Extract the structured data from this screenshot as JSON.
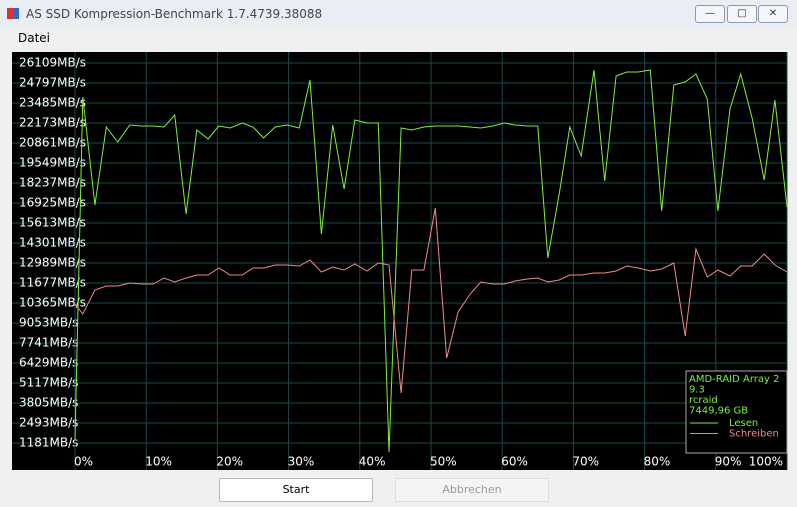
{
  "window": {
    "title": "AS SSD Kompression-Benchmark 1.7.4739.38088"
  },
  "menu": [
    "Datei"
  ],
  "chart_data": {
    "type": "line",
    "info": [
      "AMD-RAID Array 2",
      "9.3",
      "rcraid",
      "7449,96 GB"
    ],
    "x": [
      0,
      1.1,
      2.8,
      4.4,
      6.0,
      7.7,
      9.3,
      11.0,
      12.5,
      14.0,
      15.6,
      17.1,
      18.7,
      20.2,
      21.8,
      23.5,
      25.0,
      26.5,
      28.1,
      29.8,
      31.5,
      33.0,
      34.6,
      36.2,
      37.8,
      39.3,
      41.0,
      42.6,
      44.1,
      45.8,
      47.3,
      49.0,
      50.6,
      52.2,
      53.8,
      55.5,
      57.0,
      58.7,
      60.3,
      61.8,
      63.5,
      65.0,
      66.4,
      68.0,
      69.5,
      71.1,
      72.9,
      74.4,
      76.0,
      77.5,
      79.1,
      80.8,
      82.4,
      84.1,
      85.7,
      87.2,
      88.8,
      90.3,
      92.0,
      93.5,
      95.1,
      96.8,
      98.3,
      100
    ],
    "series": [
      {
        "name": "Lesen",
        "color": "#7cf03c",
        "values": [
          1378,
          23879,
          16794,
          21911,
          20927,
          22042,
          21976,
          21976,
          21911,
          22698,
          16203,
          21714,
          21124,
          21976,
          21845,
          22173,
          21911,
          21189,
          21911,
          22042,
          21845,
          24994,
          14891,
          22042,
          17843,
          22370,
          22173,
          22173,
          590,
          21845,
          21714,
          21911,
          21976,
          21976,
          21976,
          21911,
          21845,
          21976,
          22173,
          22042,
          21976,
          21976,
          13317,
          17515,
          21911,
          20008,
          25650,
          18368,
          25256,
          25519,
          25519,
          25650,
          16400,
          24666,
          24863,
          25387,
          23747,
          16400,
          23091,
          25387,
          22501,
          18434,
          23682,
          16663
        ]
      },
      {
        "name": "Schreiben",
        "color": "#f08a8a",
        "values": [
          10300,
          9644,
          11218,
          11480,
          11480,
          11677,
          11611,
          11611,
          12005,
          11742,
          12005,
          12202,
          12202,
          12661,
          12202,
          12202,
          12661,
          12661,
          12858,
          12858,
          12792,
          13186,
          12398,
          12726,
          12530,
          12923,
          12464,
          12989,
          12858,
          4461,
          12530,
          12530,
          16597,
          6757,
          9775,
          10955,
          11742,
          11611,
          11611,
          11808,
          11939,
          12005,
          11742,
          11874,
          12202,
          12202,
          12333,
          12333,
          12464,
          12792,
          12661,
          12464,
          12595,
          12989,
          8200,
          13907,
          12071,
          12530,
          12136,
          12792,
          12792,
          13579,
          12858,
          12398
        ]
      }
    ],
    "xlim": [
      0,
      100
    ],
    "xticks": [
      {
        "value": 0,
        "label": "0%"
      },
      {
        "value": 10,
        "label": "10%"
      },
      {
        "value": 20,
        "label": "20%"
      },
      {
        "value": 30,
        "label": "30%"
      },
      {
        "value": 40,
        "label": "40%"
      },
      {
        "value": 50,
        "label": "50%"
      },
      {
        "value": 60,
        "label": "60%"
      },
      {
        "value": 70,
        "label": "70%"
      },
      {
        "value": 80,
        "label": "80%"
      },
      {
        "value": 90,
        "label": "90%"
      },
      {
        "value": 100,
        "label": "100%"
      }
    ],
    "ylim": [
      -590,
      26831
    ],
    "yticks": [
      {
        "value": 26109,
        "label": "26109MB/s"
      },
      {
        "value": 24797,
        "label": "24797MB/s"
      },
      {
        "value": 23485,
        "label": "23485MB/s"
      },
      {
        "value": 22173,
        "label": "22173MB/s"
      },
      {
        "value": 20861,
        "label": "20861MB/s"
      },
      {
        "value": 19549,
        "label": "19549MB/s"
      },
      {
        "value": 18237,
        "label": "18237MB/s"
      },
      {
        "value": 16925,
        "label": "16925MB/s"
      },
      {
        "value": 15613,
        "label": "15613MB/s"
      },
      {
        "value": 14301,
        "label": "14301MB/s"
      },
      {
        "value": 12989,
        "label": "12989MB/s"
      },
      {
        "value": 11677,
        "label": "11677MB/s"
      },
      {
        "value": 10365,
        "label": "10365MB/s"
      },
      {
        "value": 9053,
        "label": "9053MB/s"
      },
      {
        "value": 7741,
        "label": "7741MB/s"
      },
      {
        "value": 6429,
        "label": "6429MB/s"
      },
      {
        "value": 5117,
        "label": "5117MB/s"
      },
      {
        "value": 3805,
        "label": "3805MB/s"
      },
      {
        "value": 2493,
        "label": "2493MB/s"
      },
      {
        "value": 1181,
        "label": "1181MB/s"
      }
    ],
    "grid": true
  },
  "buttons": [
    "Start",
    "Abbrechen"
  ]
}
